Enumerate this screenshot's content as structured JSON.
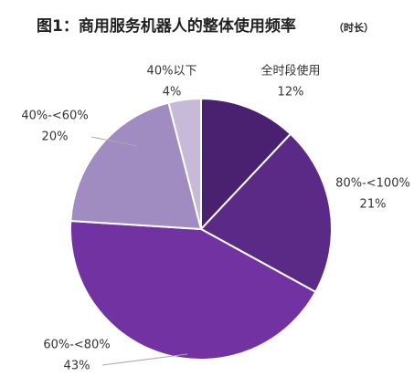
{
  "chart_data": {
    "type": "pie",
    "title": "图1：商用服务机器人的整体使用频率",
    "subtitle": "（时长）",
    "categories": [
      "全时段使用",
      "80%-<100%",
      "60%-<80%",
      "40%-<60%",
      "40%以下"
    ],
    "values": [
      12,
      21,
      43,
      20,
      4
    ],
    "value_labels": [
      "12%",
      "21%",
      "43%",
      "20%",
      "4%"
    ],
    "colors": [
      "#4a2170",
      "#5b2a86",
      "#7232a2",
      "#a08cc0",
      "#c7bad8"
    ]
  }
}
